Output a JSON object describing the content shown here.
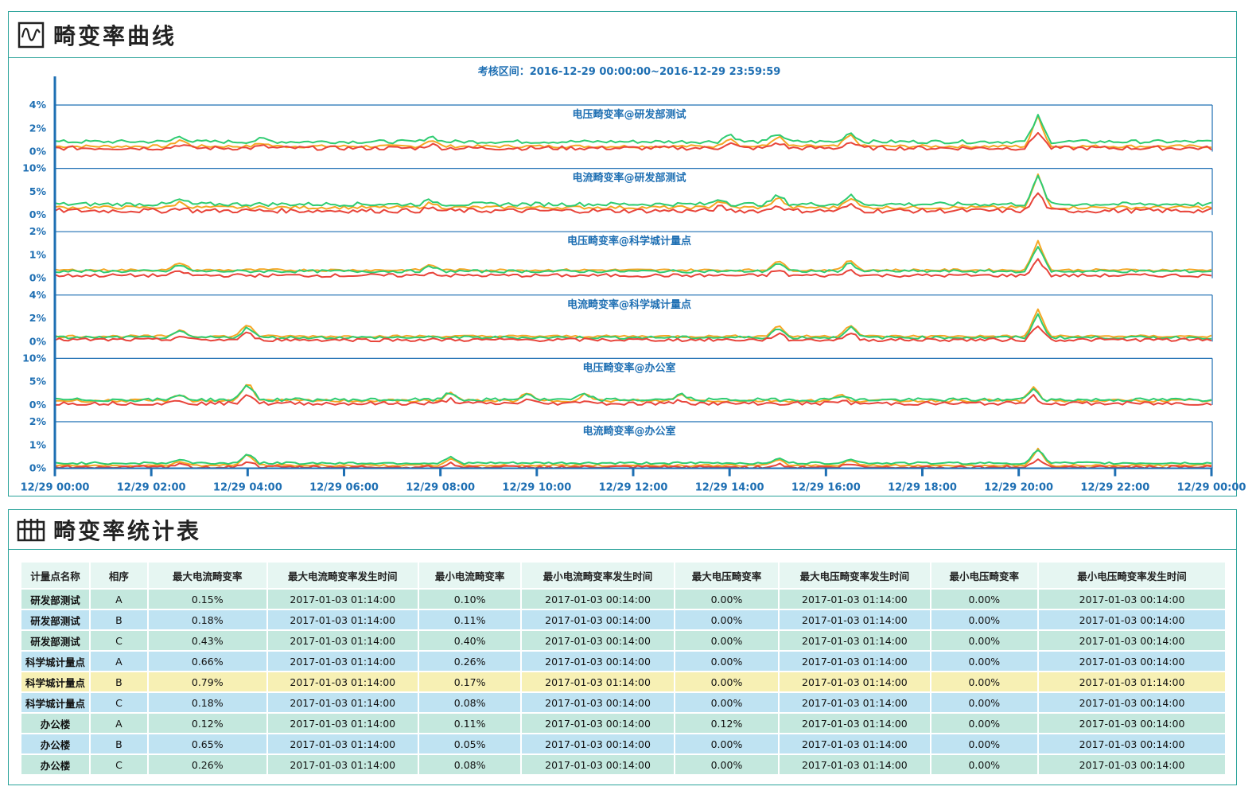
{
  "chart_panel": {
    "title": "畸变率曲线",
    "icon": "waveform-icon"
  },
  "table_panel": {
    "title": "畸变率统计表",
    "icon": "table-grid-icon"
  },
  "chart_data": {
    "type": "line",
    "subtitle": "考核区间：2016-12-29  00:00:00~2016-12-29  23:59:59",
    "x_tick_labels": [
      "12/29  00:00",
      "12/29  02:00",
      "12/29  04:00",
      "12/29  06:00",
      "12/29  08:00",
      "12/29  10:00",
      "12/29  12:00",
      "12/29  14:00",
      "12/29  16:00",
      "12/29  18:00",
      "12/29  20:00",
      "12/29  22:00",
      "12/29  00:00"
    ],
    "x_range_hours": [
      0,
      24
    ],
    "series_colors": {
      "A": "#f5a623",
      "B": "#2ecc71",
      "C": "#e8443a"
    },
    "subplots": [
      {
        "title": "电压畸变率@研发部测试",
        "yticks": [
          "0%",
          "2%",
          "4%"
        ],
        "ylim": [
          0,
          4
        ],
        "base": [
          0.45,
          0.85,
          0.3
        ],
        "noise": 0.25,
        "spikes": [
          [
            2.6,
            0.6
          ],
          [
            4.3,
            0.3
          ],
          [
            7.8,
            0.6
          ],
          [
            14.0,
            0.8
          ],
          [
            15.0,
            0.9
          ],
          [
            16.5,
            1.0
          ],
          [
            20.4,
            2.6
          ]
        ]
      },
      {
        "title": "电流畸变率@研发部测试",
        "yticks": [
          "0%",
          "5%",
          "10%"
        ],
        "ylim": [
          0,
          10
        ],
        "base": [
          1.6,
          2.3,
          0.9
        ],
        "noise": 0.7,
        "spikes": [
          [
            2.6,
            1.2
          ],
          [
            7.8,
            1.0
          ],
          [
            13.8,
            1.5
          ],
          [
            15.0,
            2.3
          ],
          [
            16.5,
            2.3
          ],
          [
            20.4,
            7.0
          ]
        ]
      },
      {
        "title": "电压畸变率@科学城计量点",
        "yticks": [
          "0%",
          "1%",
          "2%"
        ],
        "ylim": [
          0,
          2
        ],
        "base": [
          0.35,
          0.3,
          0.12
        ],
        "noise": 0.1,
        "spikes": [
          [
            2.6,
            0.35
          ],
          [
            7.8,
            0.25
          ],
          [
            15.0,
            0.45
          ],
          [
            16.5,
            0.45
          ],
          [
            20.4,
            1.3
          ]
        ]
      },
      {
        "title": "电流畸变率@科学城计量点",
        "yticks": [
          "0%",
          "2%",
          "4%"
        ],
        "ylim": [
          0,
          4
        ],
        "base": [
          0.45,
          0.35,
          0.15
        ],
        "noise": 0.2,
        "spikes": [
          [
            2.6,
            0.6
          ],
          [
            4.0,
            1.1
          ],
          [
            15.0,
            1.0
          ],
          [
            16.5,
            1.1
          ],
          [
            20.4,
            2.3
          ]
        ]
      },
      {
        "title": "电压畸变率@办公室",
        "yticks": [
          "0%",
          "5%",
          "10%"
        ],
        "ylim": [
          0,
          10
        ],
        "base": [
          0.9,
          1.1,
          0.3
        ],
        "noise": 0.6,
        "spikes": [
          [
            2.6,
            1.4
          ],
          [
            4.0,
            4.2
          ],
          [
            8.2,
            1.8
          ],
          [
            9.8,
            1.6
          ],
          [
            11.0,
            1.5
          ],
          [
            13.0,
            1.4
          ],
          [
            16.3,
            1.3
          ],
          [
            20.3,
            2.8
          ]
        ]
      },
      {
        "title": "电流畸变率@办公室",
        "yticks": [
          "0%",
          "1%",
          "2%"
        ],
        "ylim": [
          0,
          2
        ],
        "base": [
          0.12,
          0.22,
          0.05
        ],
        "noise": 0.08,
        "spikes": [
          [
            2.6,
            0.2
          ],
          [
            4.0,
            0.5
          ],
          [
            8.2,
            0.3
          ],
          [
            15.0,
            0.25
          ],
          [
            16.5,
            0.25
          ],
          [
            20.4,
            0.7
          ]
        ]
      }
    ]
  },
  "table": {
    "headers": [
      "计量点名称",
      "相序",
      "最大电流畸变率",
      "最大电流畸变率发生时间",
      "最小电流畸变率",
      "最小电流畸变率发生时间",
      "最大电压畸变率",
      "最大电压畸变率发生时间",
      "最小电压畸变率",
      "最小电压畸变率发生时间"
    ],
    "rows": [
      [
        "研发部测试",
        "A",
        "0.15%",
        "2017-01-03  01:14:00",
        "0.10%",
        "2017-01-03  00:14:00",
        "0.00%",
        "2017-01-03  01:14:00",
        "0.00%",
        "2017-01-03  00:14:00"
      ],
      [
        "研发部测试",
        "B",
        "0.18%",
        "2017-01-03  01:14:00",
        "0.11%",
        "2017-01-03  00:14:00",
        "0.00%",
        "2017-01-03  01:14:00",
        "0.00%",
        "2017-01-03  00:14:00"
      ],
      [
        "研发部测试",
        "C",
        "0.43%",
        "2017-01-03  01:14:00",
        "0.40%",
        "2017-01-03  00:14:00",
        "0.00%",
        "2017-01-03  01:14:00",
        "0.00%",
        "2017-01-03  00:14:00"
      ],
      [
        "科学城计量点",
        "A",
        "0.66%",
        "2017-01-03  01:14:00",
        "0.26%",
        "2017-01-03  00:14:00",
        "0.00%",
        "2017-01-03  01:14:00",
        "0.00%",
        "2017-01-03  00:14:00"
      ],
      [
        "科学城计量点",
        "B",
        "0.79%",
        "2017-01-03  01:14:00",
        "0.17%",
        "2017-01-03  01:14:00",
        "0.00%",
        "2017-01-03  01:14:00",
        "0.00%",
        "2017-01-03  01:14:00"
      ],
      [
        "科学城计量点",
        "C",
        "0.18%",
        "2017-01-03  01:14:00",
        "0.08%",
        "2017-01-03  00:14:00",
        "0.00%",
        "2017-01-03  01:14:00",
        "0.00%",
        "2017-01-03  00:14:00"
      ],
      [
        "办公楼",
        "A",
        "0.12%",
        "2017-01-03  01:14:00",
        "0.11%",
        "2017-01-03  00:14:00",
        "0.12%",
        "2017-01-03  01:14:00",
        "0.00%",
        "2017-01-03  00:14:00"
      ],
      [
        "办公楼",
        "B",
        "0.65%",
        "2017-01-03  01:14:00",
        "0.05%",
        "2017-01-03  00:14:00",
        "0.00%",
        "2017-01-03  01:14:00",
        "0.00%",
        "2017-01-03  00:14:00"
      ],
      [
        "办公楼",
        "C",
        "0.26%",
        "2017-01-03  01:14:00",
        "0.08%",
        "2017-01-03  00:14:00",
        "0.00%",
        "2017-01-03  01:14:00",
        "0.00%",
        "2017-01-03  00:14:00"
      ]
    ],
    "highlight_row": 4
  }
}
